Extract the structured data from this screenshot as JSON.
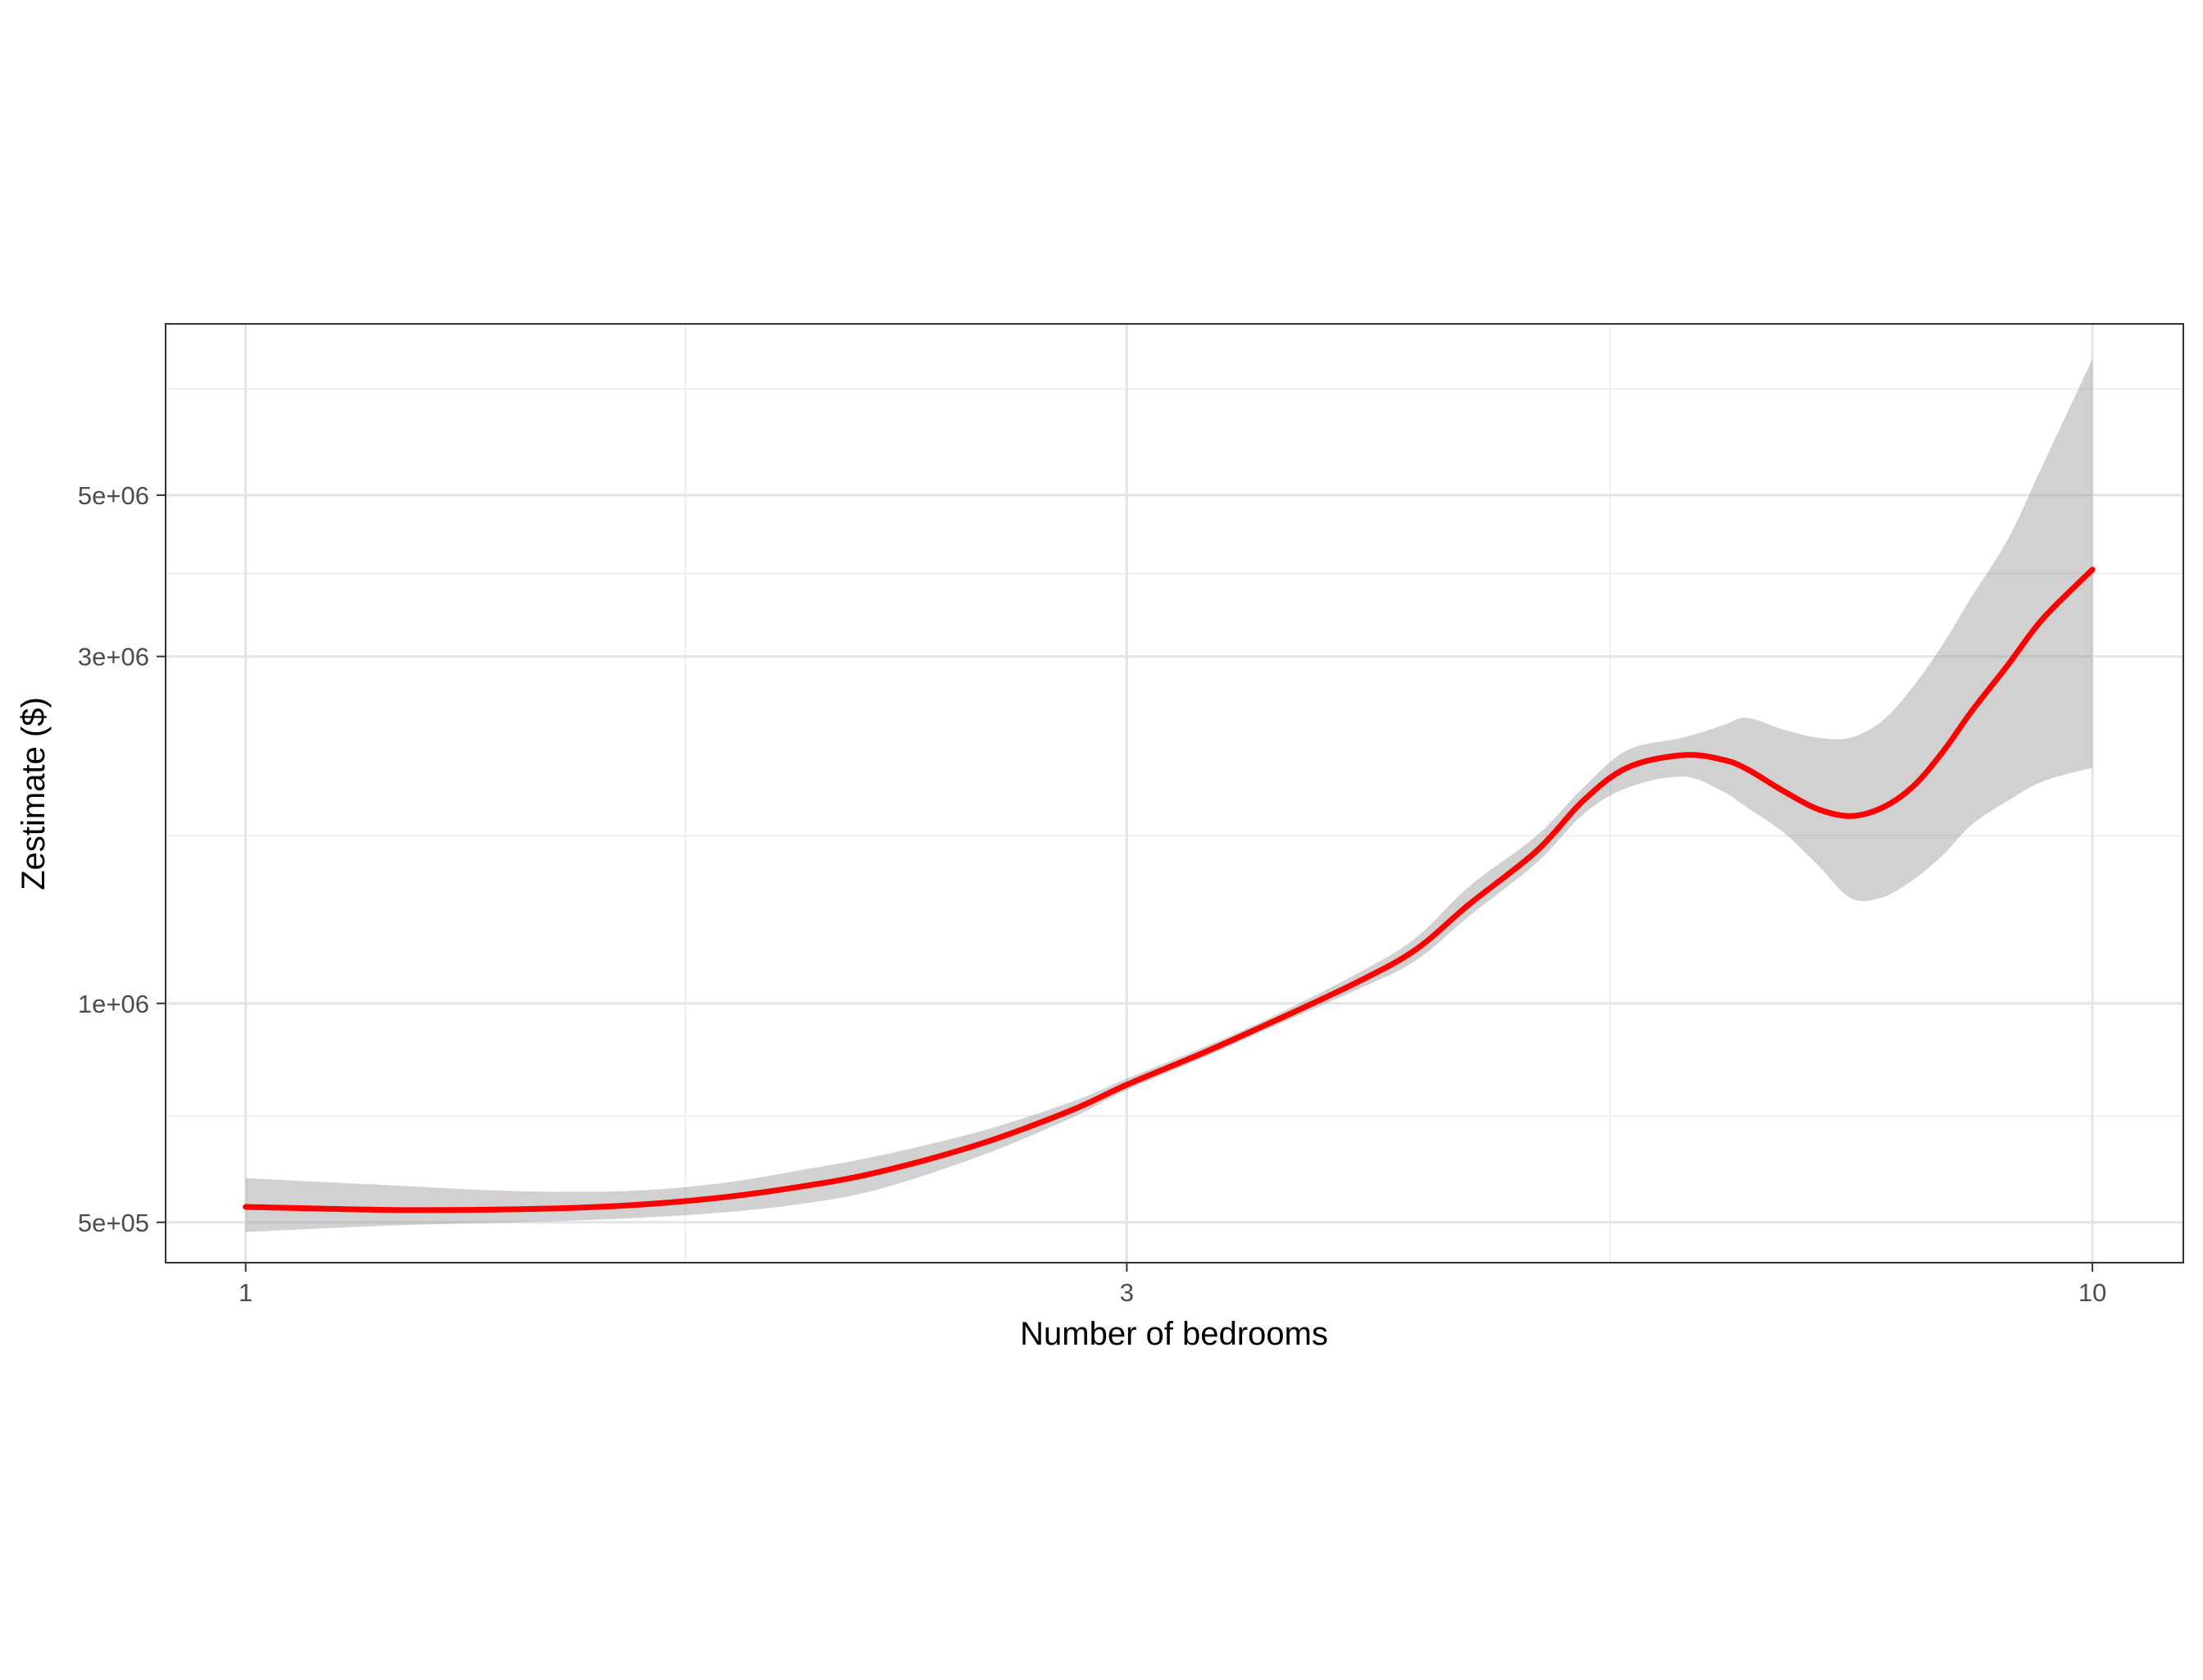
{
  "chart_data": {
    "type": "line",
    "title": "",
    "xlabel": "Number of bedrooms",
    "ylabel": "Zestimate ($)",
    "x_scale": "log10",
    "y_scale": "log10",
    "xlim": [
      0.905,
      11.2
    ],
    "ylim": [
      440000,
      8600000
    ],
    "x_ticks": [
      {
        "value": 1,
        "label": "1"
      },
      {
        "value": 3,
        "label": "3"
      },
      {
        "value": 10,
        "label": "10"
      }
    ],
    "x_minor_ticks": [
      1.73,
      5.48
    ],
    "y_ticks": [
      {
        "value": 500000,
        "label": "5e+05"
      },
      {
        "value": 1000000,
        "label": "1e+06"
      },
      {
        "value": 3000000,
        "label": "3e+06"
      },
      {
        "value": 5000000,
        "label": "5e+06"
      }
    ],
    "y_minor_ticks": [
      700000,
      1700000,
      3900000,
      7000000
    ],
    "grid": true,
    "series": [
      {
        "color": "#ff0000",
        "x": [
          1.0,
          1.2,
          1.4,
          1.6,
          1.8,
          2.0,
          2.2,
          2.5,
          2.8,
          3.0,
          3.3,
          3.6,
          4.0,
          4.3,
          4.6,
          5.0,
          5.3,
          5.6,
          6.0,
          6.3,
          6.5,
          6.8,
          7.1,
          7.4,
          7.7,
          8.0,
          8.3,
          8.6,
          9.0,
          9.4,
          10.0
        ],
        "y": [
          525000,
          520000,
          521000,
          527000,
          540000,
          560000,
          586000,
          641000,
          713000,
          773000,
          855000,
          944000,
          1070000,
          1185000,
          1370000,
          1620000,
          1900000,
          2110000,
          2195000,
          2165000,
          2100000,
          1960000,
          1850000,
          1810000,
          1860000,
          1990000,
          2220000,
          2520000,
          2920000,
          3380000,
          3950000
        ],
        "ci_lower": [
          485000,
          495000,
          500000,
          506000,
          515000,
          530000,
          555000,
          617000,
          696000,
          760000,
          842000,
          929000,
          1045000,
          1145000,
          1320000,
          1560000,
          1820000,
          1980000,
          2050000,
          1960000,
          1860000,
          1720000,
          1550000,
          1395000,
          1400000,
          1480000,
          1600000,
          1760000,
          1900000,
          2020000,
          2110000
        ],
        "ci_upper": [
          575000,
          562000,
          552000,
          552000,
          565000,
          590000,
          617000,
          667000,
          732000,
          788000,
          870000,
          960000,
          1100000,
          1230000,
          1450000,
          1700000,
          1980000,
          2230000,
          2320000,
          2410000,
          2470000,
          2380000,
          2320000,
          2320000,
          2450000,
          2730000,
          3120000,
          3620000,
          4350000,
          5500000,
          7700000
        ]
      }
    ]
  }
}
